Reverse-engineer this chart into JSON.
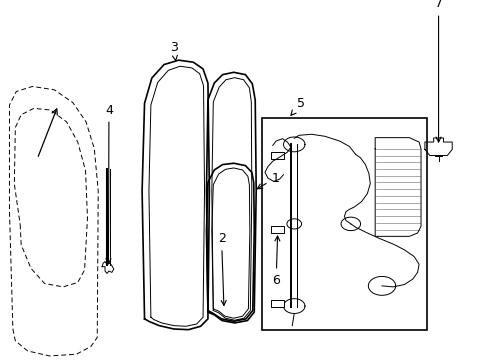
{
  "background_color": "#ffffff",
  "line_color": "#000000",
  "figsize": [
    4.89,
    3.6
  ],
  "dpi": 100,
  "label_fontsize": 9
}
